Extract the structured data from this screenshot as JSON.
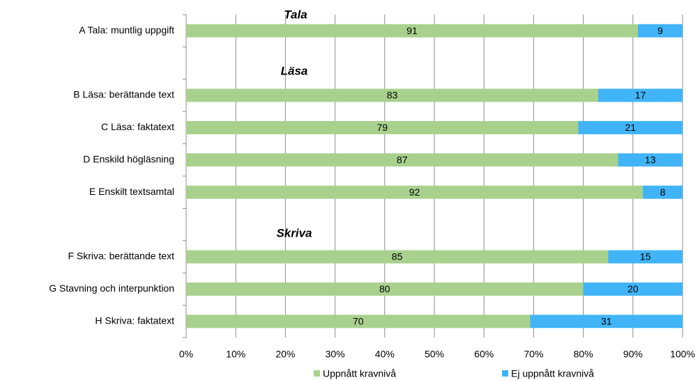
{
  "chart_data": {
    "type": "bar",
    "orientation": "horizontal",
    "stacked": "percent",
    "annotations": [
      "Tala",
      "Läsa",
      "Skriva"
    ],
    "categories": [
      "A Tala: muntlig uppgift",
      null,
      "B Läsa: berättande text",
      "C Läsa: faktatext",
      "D Enskild högläsning",
      "E Enskilt textsamtal",
      null,
      "F Skriva: berättande text",
      "G Stavning och interpunktion",
      "H Skriva: faktatext"
    ],
    "series": [
      {
        "name": "Uppnått kravnivå",
        "color": "#a9d18e",
        "values": [
          91,
          null,
          83,
          79,
          87,
          92,
          null,
          85,
          80,
          70
        ]
      },
      {
        "name": "Ej uppnått kravnivå",
        "color": "#41b4f7",
        "values": [
          9,
          null,
          17,
          21,
          13,
          8,
          null,
          15,
          20,
          31
        ]
      }
    ],
    "xlim": [
      0,
      100
    ],
    "xticks": [
      {
        "value": 0,
        "label": "0%"
      },
      {
        "value": 10,
        "label": "10%"
      },
      {
        "value": 20,
        "label": "20%"
      },
      {
        "value": 30,
        "label": "30%"
      },
      {
        "value": 40,
        "label": "40%"
      },
      {
        "value": 50,
        "label": "50%"
      },
      {
        "value": 60,
        "label": "60%"
      },
      {
        "value": 70,
        "label": "70%"
      },
      {
        "value": 80,
        "label": "80%"
      },
      {
        "value": 90,
        "label": "90%"
      },
      {
        "value": 100,
        "label": "100%"
      }
    ],
    "grid": true,
    "legend": "bottom"
  }
}
